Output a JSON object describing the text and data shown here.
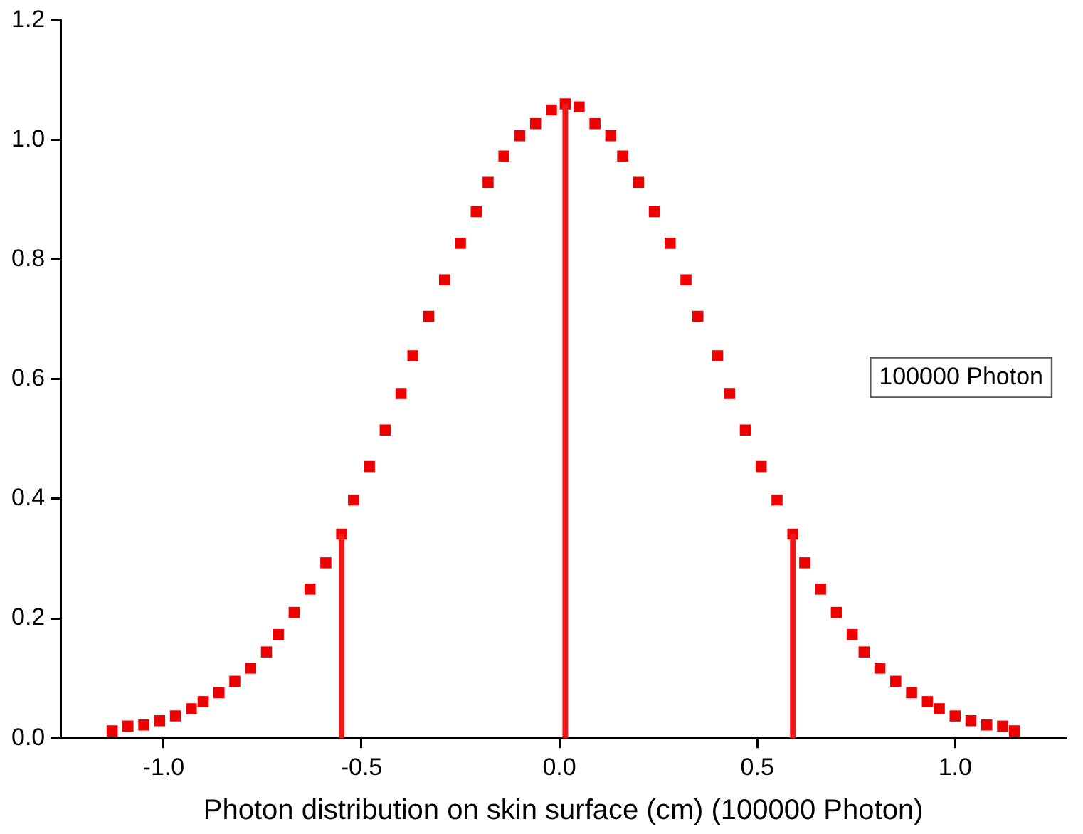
{
  "chart_data": {
    "type": "scatter",
    "xlabel": "Photon distribution on skin surface (cm) (100000 Photon)",
    "annotations": [
      "100000 Photon"
    ],
    "xlim": [
      -1.26,
      1.28
    ],
    "ylim": [
      0,
      1.2
    ],
    "xticks": [
      {
        "value": -1,
        "label": "-1.0"
      },
      {
        "value": -0.5,
        "label": "-0.5"
      },
      {
        "value": 0,
        "label": "0.0"
      },
      {
        "value": 0.5,
        "label": "0.5"
      },
      {
        "value": 1,
        "label": "1.0"
      }
    ],
    "yticks": [
      {
        "value": 0,
        "label": "0.0"
      },
      {
        "value": 0.2,
        "label": "0.2"
      },
      {
        "value": 0.4,
        "label": "0.4"
      },
      {
        "value": 0.6,
        "label": "0.6"
      },
      {
        "value": 0.8,
        "label": "0.8"
      },
      {
        "value": 1,
        "label": "1.0"
      },
      {
        "value": 1.2,
        "label": "1.2"
      }
    ],
    "grid": false,
    "legend": false,
    "marker": "square",
    "series": [
      {
        "color": "#ee0000",
        "x": [
          -1.13,
          -1.09,
          -1.05,
          -1.01,
          -0.97,
          -0.93,
          -0.9,
          -0.86,
          -0.82,
          -0.78,
          -0.74,
          -0.71,
          -0.67,
          -0.63,
          -0.59,
          -0.55,
          -0.52,
          -0.48,
          -0.44,
          -0.4,
          -0.37,
          -0.33,
          -0.29,
          -0.25,
          -0.21,
          -0.18,
          -0.14,
          -0.1,
          -0.06,
          -0.02,
          0.015,
          0.05,
          0.09,
          0.13,
          0.16,
          0.2,
          0.24,
          0.28,
          0.32,
          0.35,
          0.4,
          0.43,
          0.47,
          0.51,
          0.55,
          0.59,
          0.62,
          0.66,
          0.7,
          0.74,
          0.77,
          0.81,
          0.85,
          0.89,
          0.93,
          0.96,
          1.0,
          1.04,
          1.08,
          1.12,
          1.15
        ],
        "values": [
          0.012,
          0.02,
          0.022,
          0.029,
          0.037,
          0.049,
          0.061,
          0.076,
          0.095,
          0.117,
          0.144,
          0.173,
          0.21,
          0.249,
          0.293,
          0.341,
          0.398,
          0.454,
          0.515,
          0.576,
          0.639,
          0.705,
          0.766,
          0.827,
          0.88,
          0.929,
          0.973,
          1.007,
          1.027,
          1.05,
          1.06,
          1.055,
          1.027,
          1.007,
          0.973,
          0.929,
          0.88,
          0.827,
          0.766,
          0.705,
          0.639,
          0.576,
          0.515,
          0.454,
          0.398,
          0.341,
          0.293,
          0.249,
          0.21,
          0.173,
          0.144,
          0.117,
          0.095,
          0.076,
          0.061,
          0.049,
          0.037,
          0.029,
          0.022,
          0.02,
          0.012
        ]
      },
      {
        "type": "line",
        "color": "#f21818",
        "marker": "none",
        "x": [
          -0.55,
          -0.55
        ],
        "values": [
          0,
          0.341
        ]
      },
      {
        "type": "line",
        "color": "#f21818",
        "marker": "none",
        "x": [
          0.015,
          0.015
        ],
        "values": [
          0,
          1.06
        ]
      },
      {
        "type": "line",
        "color": "#f21818",
        "marker": "none",
        "x": [
          0.59,
          0.59
        ],
        "values": [
          0,
          0.341
        ]
      }
    ]
  }
}
